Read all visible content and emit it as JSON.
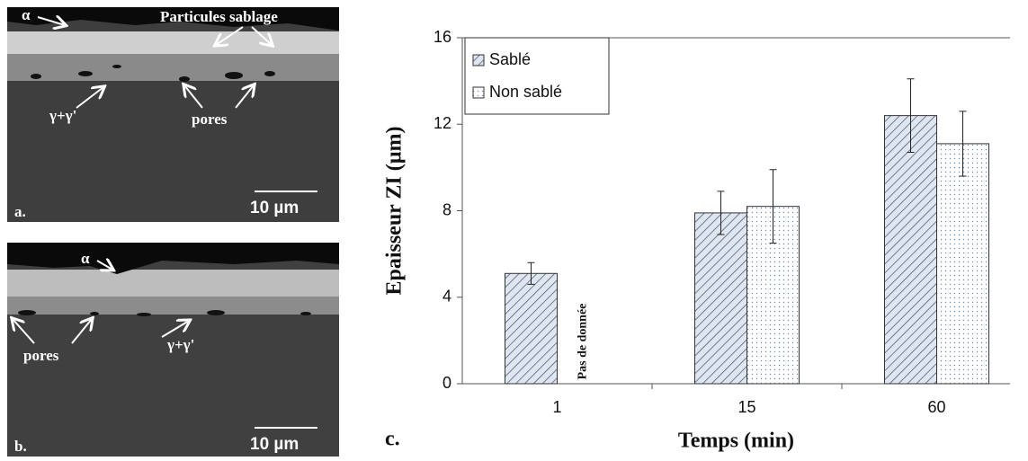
{
  "micrographs": [
    {
      "labels": [
        "α",
        "Particules sablage",
        "γ+γ'",
        "pores"
      ],
      "scale": "10 µm",
      "panel": "a."
    },
    {
      "labels": [
        "α",
        "pores",
        "γ+γ'"
      ],
      "scale": "10 µm",
      "panel": "b."
    }
  ],
  "chart_data": {
    "type": "bar",
    "panel": "c.",
    "xlabel": "Temps (min)",
    "ylabel": "Epaisseur ZI (µm)",
    "categories": [
      "1",
      "15",
      "60"
    ],
    "series": [
      {
        "name": "Sablé",
        "color": "#dfe6f0",
        "values": [
          5.1,
          7.9,
          12.4
        ],
        "errors": [
          0.5,
          1.0,
          1.7
        ]
      },
      {
        "name": "Non sablé",
        "color": "#ffffff",
        "values": [
          null,
          8.2,
          11.1
        ],
        "errors": [
          null,
          1.7,
          1.5
        ]
      }
    ],
    "annotation": "Pas de donnée",
    "ylim": [
      0,
      16
    ],
    "yticks": [
      0,
      4,
      8,
      12,
      16
    ],
    "legend": "upper left"
  }
}
